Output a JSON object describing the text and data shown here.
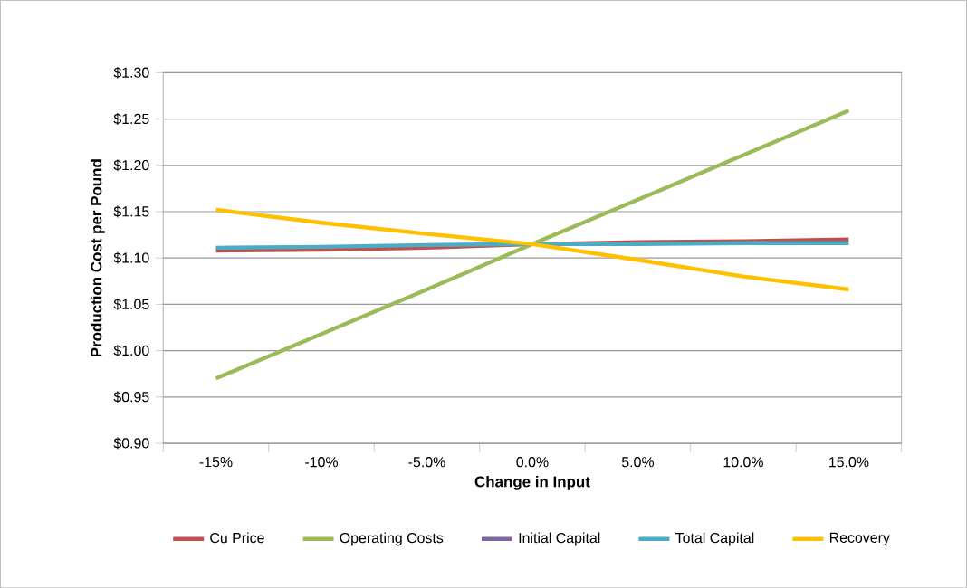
{
  "chart_data": {
    "type": "line",
    "xlabel": "Change in Input",
    "ylabel": "Production Cost per Pound",
    "categories": [
      "-15%",
      "-10%",
      "-5.0%",
      "0.0%",
      "5.0%",
      "10.0%",
      "15.0%"
    ],
    "series": [
      {
        "name": "Cu Price",
        "color": "#c0504d",
        "values": [
          1.108,
          1.109,
          1.111,
          1.115,
          1.117,
          1.118,
          1.12
        ]
      },
      {
        "name": "Operating Costs",
        "color": "#9bbb59",
        "values": [
          0.97,
          1.018,
          1.066,
          1.115,
          1.163,
          1.211,
          1.259
        ]
      },
      {
        "name": "Initial Capital",
        "color": "#8064a2",
        "values": [
          null,
          null,
          null,
          null,
          null,
          null,
          null
        ]
      },
      {
        "name": "Total Capital",
        "color": "#4bacc6",
        "values": [
          1.111,
          1.112,
          1.114,
          1.115,
          1.115,
          1.116,
          1.116
        ]
      },
      {
        "name": "Recovery",
        "color": "#ffc000",
        "values": [
          1.152,
          1.138,
          1.126,
          1.115,
          1.098,
          1.08,
          1.066
        ]
      }
    ],
    "ylim": [
      0.9,
      1.3
    ],
    "yticks": [
      {
        "value": 0.9,
        "label": "$0.90"
      },
      {
        "value": 0.95,
        "label": "$0.95"
      },
      {
        "value": 1.0,
        "label": "$1.00"
      },
      {
        "value": 1.05,
        "label": "$1.05"
      },
      {
        "value": 1.1,
        "label": "$1.10"
      },
      {
        "value": 1.15,
        "label": "$1.15"
      },
      {
        "value": 1.2,
        "label": "$1.20"
      },
      {
        "value": 1.25,
        "label": "$1.25"
      },
      {
        "value": 1.3,
        "label": "$1.30"
      }
    ],
    "grid": "y",
    "legend": "bottom",
    "marker": "none",
    "line_style": "solid"
  }
}
